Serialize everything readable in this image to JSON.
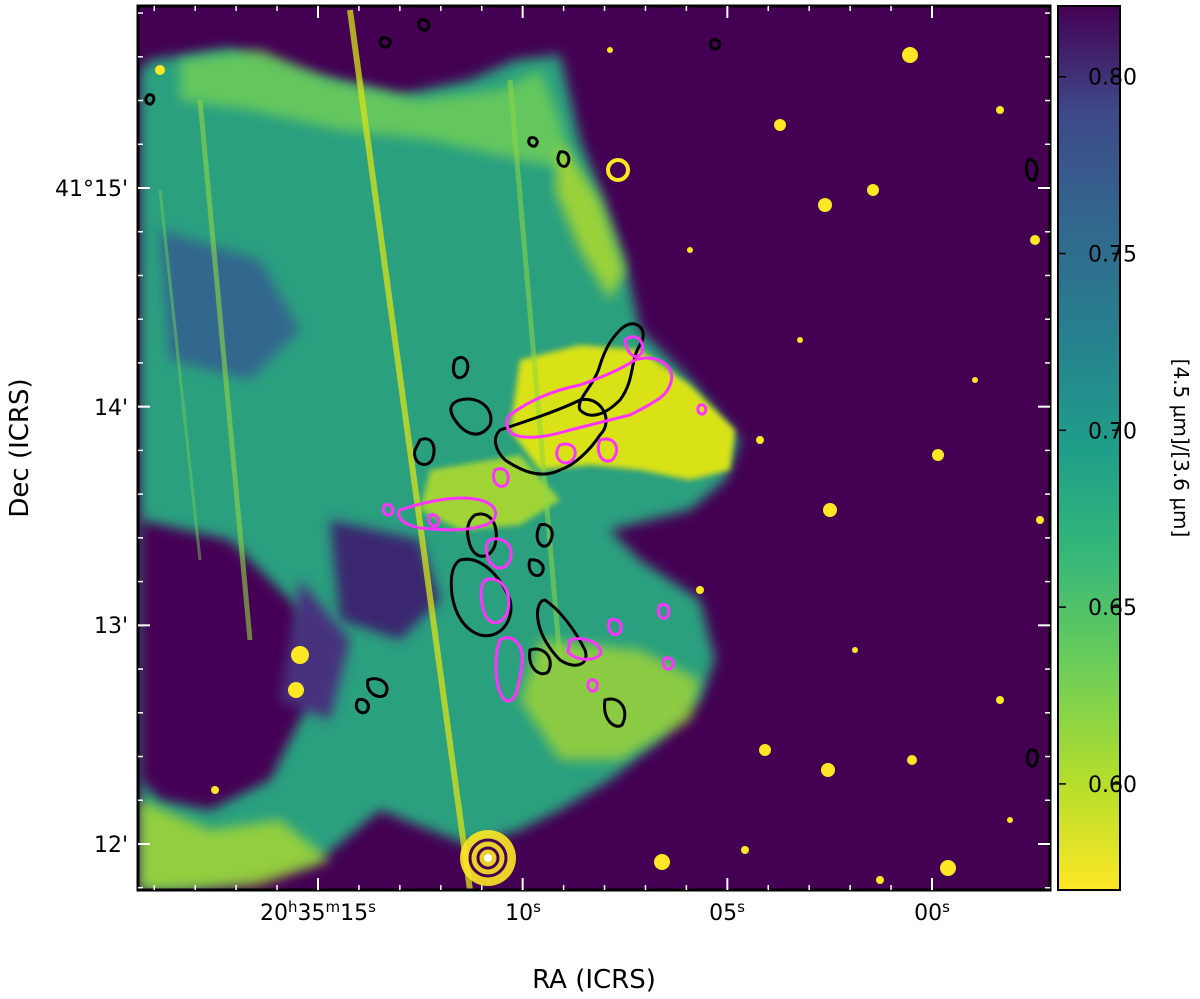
{
  "chart_data": {
    "type": "heatmap",
    "title": "",
    "xlabel": "RA (ICRS)",
    "ylabel": "Dec (ICRS)",
    "x_ticks": [
      {
        "label": "20h35m15s",
        "value_seconds": 15
      },
      {
        "label": "10s",
        "value_seconds": 10
      },
      {
        "label": "05s",
        "value_seconds": 5
      },
      {
        "label": "00s",
        "value_seconds": 0
      }
    ],
    "y_ticks": [
      {
        "label": "41°15'",
        "value_arcmin": 15
      },
      {
        "label": "14'",
        "value_arcmin": 14
      },
      {
        "label": "13'",
        "value_arcmin": 13
      },
      {
        "label": "12'",
        "value_arcmin": 12
      }
    ],
    "colorbar": {
      "label": "[4.5 μm]/[3.6 μm]",
      "colormap": "viridis_r",
      "range": [
        0.57,
        0.82
      ],
      "ticks": [
        0.6,
        0.65,
        0.7,
        0.75,
        0.8
      ],
      "tick_labels": [
        "0.60",
        "0.65",
        "0.70",
        "0.75",
        "0.80"
      ],
      "colors": {
        "low": "#fde725",
        "mid": "#21918c",
        "high": "#440154"
      }
    },
    "contours": [
      {
        "name": "black contours",
        "color": "#000000"
      },
      {
        "name": "magenta contours",
        "color": "#ff33ff"
      }
    ],
    "background_color": "#440154",
    "nebula_color": "#35b779"
  }
}
